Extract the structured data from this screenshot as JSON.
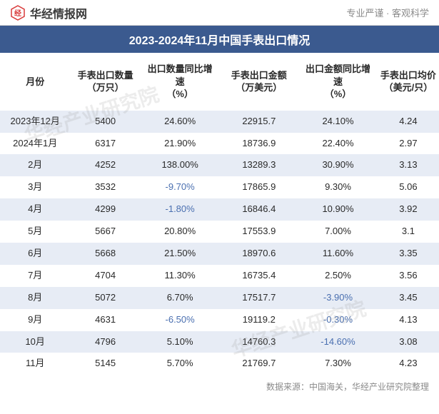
{
  "header": {
    "brand_text": "华经情报网",
    "logo_color": "#d93a3a",
    "tagline": "专业严谨 · 客观科学"
  },
  "title": "2023-2024年11月中国手表出口情况",
  "watermark_text": "华经产业研究院",
  "source_line": "数据来源：中国海关，华经产业研究院整理",
  "table": {
    "columns": [
      "月份",
      "手表出口数量\n（万只）",
      "出口数量同比增速\n（%）",
      "手表出口金额\n（万美元）",
      "出口金额同比增速\n（%）",
      "手表出口均价\n（美元/只）"
    ],
    "col_widths_pct": [
      16,
      16,
      18,
      18,
      18,
      14
    ],
    "header_fontsize": 13,
    "cell_fontsize": 13,
    "row_alt_bg": "#e7ecf5",
    "negative_color": "#4a6fb0",
    "text_color": "#2a2a2a",
    "rows": [
      {
        "alt": true,
        "cells": [
          "2023年12月",
          "5400",
          "24.60%",
          "22915.7",
          "24.10%",
          "4.24"
        ],
        "neg": [
          false,
          false,
          false,
          false,
          false,
          false
        ]
      },
      {
        "alt": false,
        "cells": [
          "2024年1月",
          "6317",
          "21.90%",
          "18736.9",
          "22.40%",
          "2.97"
        ],
        "neg": [
          false,
          false,
          false,
          false,
          false,
          false
        ]
      },
      {
        "alt": true,
        "cells": [
          "2月",
          "4252",
          "138.00%",
          "13289.3",
          "30.90%",
          "3.13"
        ],
        "neg": [
          false,
          false,
          false,
          false,
          false,
          false
        ]
      },
      {
        "alt": false,
        "cells": [
          "3月",
          "3532",
          "-9.70%",
          "17865.9",
          "9.30%",
          "5.06"
        ],
        "neg": [
          false,
          false,
          true,
          false,
          false,
          false
        ]
      },
      {
        "alt": true,
        "cells": [
          "4月",
          "4299",
          "-1.80%",
          "16846.4",
          "10.90%",
          "3.92"
        ],
        "neg": [
          false,
          false,
          true,
          false,
          false,
          false
        ]
      },
      {
        "alt": false,
        "cells": [
          "5月",
          "5667",
          "20.80%",
          "17553.9",
          "7.00%",
          "3.1"
        ],
        "neg": [
          false,
          false,
          false,
          false,
          false,
          false
        ]
      },
      {
        "alt": true,
        "cells": [
          "6月",
          "5668",
          "21.50%",
          "18970.6",
          "11.60%",
          "3.35"
        ],
        "neg": [
          false,
          false,
          false,
          false,
          false,
          false
        ]
      },
      {
        "alt": false,
        "cells": [
          "7月",
          "4704",
          "11.30%",
          "16735.4",
          "2.50%",
          "3.56"
        ],
        "neg": [
          false,
          false,
          false,
          false,
          false,
          false
        ]
      },
      {
        "alt": true,
        "cells": [
          "8月",
          "5072",
          "6.70%",
          "17517.7",
          "-3.90%",
          "3.45"
        ],
        "neg": [
          false,
          false,
          false,
          false,
          true,
          false
        ]
      },
      {
        "alt": false,
        "cells": [
          "9月",
          "4631",
          "-6.50%",
          "19119.2",
          "-0.30%",
          "4.13"
        ],
        "neg": [
          false,
          false,
          true,
          false,
          true,
          false
        ]
      },
      {
        "alt": true,
        "cells": [
          "10月",
          "4796",
          "5.10%",
          "14760.3",
          "-14.60%",
          "3.08"
        ],
        "neg": [
          false,
          false,
          false,
          false,
          true,
          false
        ]
      },
      {
        "alt": false,
        "cells": [
          "11月",
          "5145",
          "5.70%",
          "21769.7",
          "7.30%",
          "4.23"
        ],
        "neg": [
          false,
          false,
          false,
          false,
          false,
          false
        ]
      }
    ]
  },
  "title_bar": {
    "background_color": "#3b5a8f",
    "text_color": "#ffffff",
    "fontsize": 16
  }
}
